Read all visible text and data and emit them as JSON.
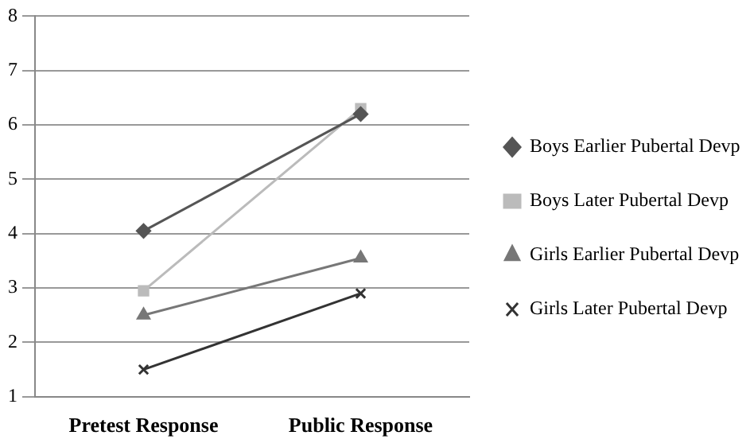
{
  "chart_data": {
    "type": "line",
    "categories": [
      "Pretest Response",
      "Public Response"
    ],
    "series": [
      {
        "name": "Boys Earlier Pubertal Devp",
        "color": "#555555",
        "marker": "diamond",
        "values": [
          4.05,
          6.2
        ]
      },
      {
        "name": "Boys Later Pubertal Devp",
        "color": "#bbbbbb",
        "marker": "square",
        "values": [
          2.95,
          6.3
        ]
      },
      {
        "name": "Girls Earlier Pubertal Devp",
        "color": "#777777",
        "marker": "triangle",
        "values": [
          2.5,
          3.55
        ]
      },
      {
        "name": "Girls Later Pubertal Devp",
        "color": "#333333",
        "marker": "cross",
        "values": [
          1.5,
          2.9
        ]
      }
    ],
    "ylim": [
      1,
      8
    ],
    "yticks": [
      1,
      2,
      3,
      4,
      5,
      6,
      7,
      8
    ],
    "grid": "y",
    "legend": "right"
  }
}
